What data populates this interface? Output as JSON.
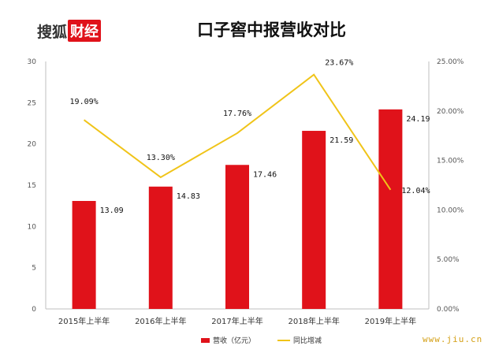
{
  "logo": {
    "part1": "搜狐",
    "part2": "财经"
  },
  "watermark": "www.jiu.cn",
  "colors": {
    "bar": "#e0121a",
    "line": "#f0c419",
    "logo_red": "#e0121a",
    "watermark": "#d4a017"
  },
  "chart_data": {
    "type": "bar+line",
    "title": "口子窖中报营收对比",
    "categories": [
      "2015年上半年",
      "2016年上半年",
      "2017年上半年",
      "2018年上半年",
      "2019年上半年"
    ],
    "series": [
      {
        "name": "营收（亿元）",
        "type": "bar",
        "axis": "left",
        "values": [
          13.09,
          14.83,
          17.46,
          21.59,
          24.19
        ],
        "labels": [
          "13.09",
          "14.83",
          "17.46",
          "21.59",
          "24.19"
        ]
      },
      {
        "name": "同比增减",
        "type": "line",
        "axis": "right",
        "values": [
          19.09,
          13.3,
          17.76,
          23.67,
          12.04
        ],
        "labels": [
          "19.09%",
          "13.30%",
          "17.76%",
          "23.67%",
          "12.04%"
        ]
      }
    ],
    "y_left": {
      "min": 0,
      "max": 30,
      "ticks": [
        "0",
        "5",
        "10",
        "15",
        "20",
        "25",
        "30"
      ]
    },
    "y_right": {
      "min": 0,
      "max": 25,
      "ticks": [
        "0.00%",
        "5.00%",
        "10.00%",
        "15.00%",
        "20.00%",
        "25.00%"
      ]
    },
    "grid": false,
    "legend_position": "bottom"
  }
}
